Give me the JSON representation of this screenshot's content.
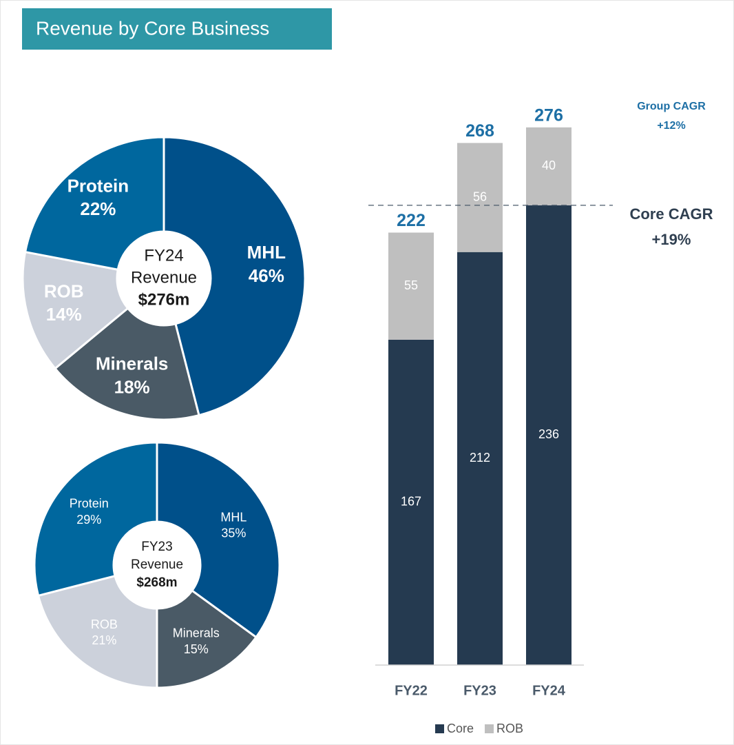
{
  "header": {
    "title": "Revenue by Core Business"
  },
  "chart_data": [
    {
      "type": "pie",
      "donut": true,
      "categories": [
        "MHL",
        "Minerals",
        "ROB",
        "Protein"
      ],
      "values": [
        46,
        18,
        14,
        22
      ],
      "value_labels": [
        "46%",
        "18%",
        "14%",
        "22%"
      ],
      "colors": [
        "#00508a",
        "#4a5a66",
        "#ccd1db",
        "#00679e"
      ],
      "center_text": [
        "FY24",
        "Revenue",
        "$276m"
      ]
    },
    {
      "type": "pie",
      "donut": true,
      "categories": [
        "MHL",
        "Minerals",
        "ROB",
        "Protein"
      ],
      "values": [
        35,
        15,
        21,
        29
      ],
      "value_labels": [
        "35%",
        "15%",
        "21%",
        "29%"
      ],
      "colors": [
        "#00508a",
        "#4a5a66",
        "#ccd1db",
        "#00679e"
      ],
      "center_text": [
        "FY23",
        "Revenue",
        "$268m"
      ]
    },
    {
      "type": "bar",
      "stacked": true,
      "categories": [
        "FY22",
        "FY23",
        "FY24"
      ],
      "series": [
        {
          "name": "Core",
          "color": "#253a50",
          "values": [
            167,
            212,
            236
          ]
        },
        {
          "name": "ROB",
          "color": "#bfbfbf",
          "values": [
            55,
            56,
            40
          ]
        }
      ],
      "totals": [
        222,
        268,
        276
      ],
      "ylim": [
        0,
        300
      ],
      "annotations": [
        "Group CAGR",
        "+12%",
        "Core CAGR",
        "+19%"
      ],
      "legend": "bottom"
    }
  ]
}
